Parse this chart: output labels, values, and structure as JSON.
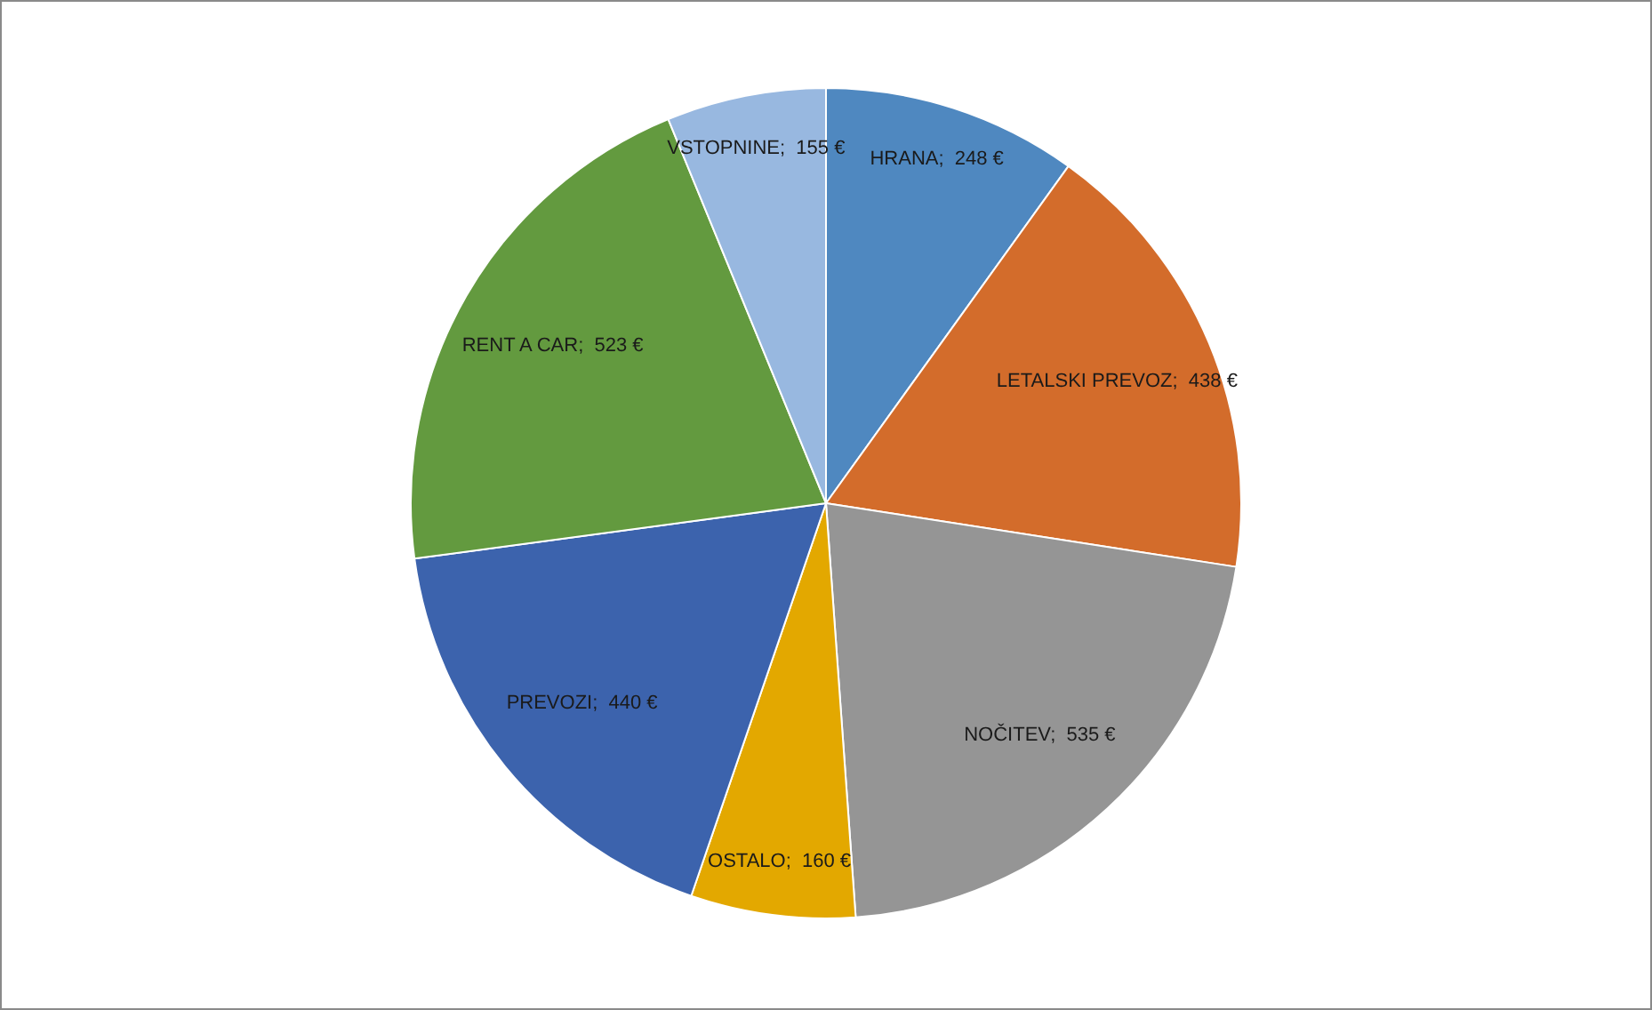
{
  "chart_data": {
    "type": "pie",
    "categories": [
      "HRANA",
      "LETALSKI PREVOZ",
      "NOČITEV",
      "OSTALO",
      "PREVOZI",
      "RENT A CAR",
      "VSTOPNINE"
    ],
    "values": [
      248,
      438,
      535,
      160,
      440,
      523,
      155
    ],
    "colors": [
      "#4f88c0",
      "#d36c2b",
      "#959595",
      "#e3a800",
      "#3c63ad",
      "#639a3f",
      "#98b8e0"
    ],
    "value_labels": [
      "248 €",
      "438 €",
      "535 €",
      "160 €",
      "440 €",
      "523 €",
      "155 €"
    ],
    "legend": false
  }
}
